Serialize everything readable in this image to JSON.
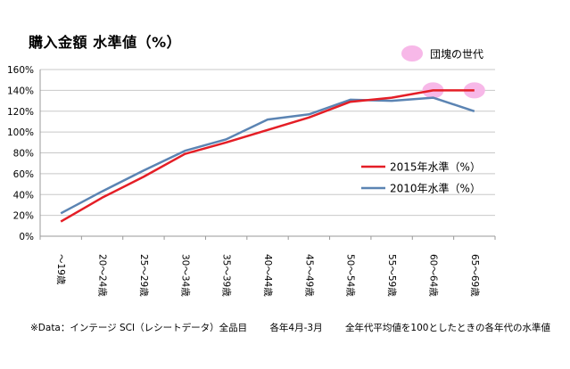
{
  "chart_data": {
    "type": "line",
    "title": "購入金額 水準値（%）",
    "categories": [
      "～19歳",
      "20～24歳",
      "25～29歳",
      "30～34歳",
      "35～39歳",
      "40～44歳",
      "45～49歳",
      "50～54歳",
      "55～59歳",
      "60～64歳",
      "65～69歳"
    ],
    "ylim": [
      0,
      160
    ],
    "yticks": [
      "0%",
      "20%",
      "40%",
      "60%",
      "80%",
      "100%",
      "120%",
      "140%",
      "160%"
    ],
    "grid": true,
    "legend_position": "right",
    "series": [
      {
        "name": "2015年水準（%）",
        "color": "#e41e26",
        "values": [
          14,
          37,
          57,
          79,
          90,
          102,
          114,
          129,
          133,
          140,
          140
        ]
      },
      {
        "name": "2010年水準（%）",
        "color": "#5b84b3",
        "values": [
          22,
          43,
          63,
          82,
          93,
          112,
          117,
          131,
          130,
          133,
          120
        ]
      }
    ],
    "highlight": {
      "label": "団塊の世代",
      "color": "#f7b8e8",
      "points": [
        9,
        10
      ]
    }
  },
  "footnote": {
    "data": "※Data：インテージ SCI（レシートデータ）全品目",
    "period": "各年4月-3月",
    "note": "全年代平均値を100としたときの各年代の水準値"
  }
}
